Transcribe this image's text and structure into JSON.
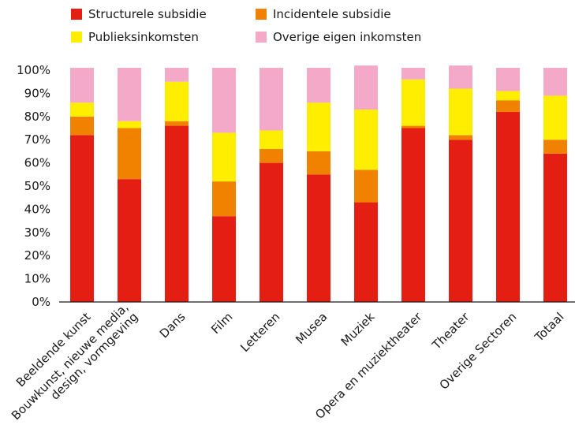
{
  "chart_data": {
    "type": "bar",
    "stacked": true,
    "title": "",
    "xlabel": "",
    "ylabel": "",
    "ylim": [
      0,
      100
    ],
    "y_ticks": [
      "0%",
      "10%",
      "20%",
      "30%",
      "40%",
      "50%",
      "60%",
      "70%",
      "80%",
      "90%",
      "100%"
    ],
    "grid": false,
    "legend_position": "top",
    "categories": [
      "Beeldende kunst",
      "Bouwkunst, nieuwe media, design, vormgeving",
      "Dans",
      "Film",
      "Letteren",
      "Musea",
      "Muziek",
      "Opera en muziektheater",
      "Theater",
      "Overige Sectoren",
      "Totaal"
    ],
    "category_lines": [
      [
        "Beeldende kunst"
      ],
      [
        "Bouwkunst, nieuwe media,",
        "design, vormgeving"
      ],
      [
        "Dans"
      ],
      [
        "Film"
      ],
      [
        "Letteren"
      ],
      [
        "Musea"
      ],
      [
        "Muziek"
      ],
      [
        "Opera en muziektheater"
      ],
      [
        "Theater"
      ],
      [
        "Overige Sectoren"
      ],
      [
        "Totaal"
      ]
    ],
    "series": [
      {
        "name": "Structurele subsidie",
        "color": "#e41e13",
        "values": [
          72,
          53,
          76,
          37,
          60,
          55,
          43,
          75,
          70,
          82,
          64
        ]
      },
      {
        "name": "Incidentele subsidie",
        "color": "#f08200",
        "values": [
          8,
          22,
          2,
          15,
          6,
          10,
          14,
          1,
          2,
          5,
          6
        ]
      },
      {
        "name": "Publieksinkomsten",
        "color": "#ffee00",
        "values": [
          6,
          3,
          17,
          21,
          8,
          21,
          26,
          20,
          20,
          4,
          19
        ]
      },
      {
        "name": "Overige eigen inkomsten",
        "color": "#f4a9c9",
        "values": [
          15,
          23,
          6,
          28,
          27,
          15,
          19,
          5,
          10,
          10,
          12
        ]
      }
    ]
  }
}
